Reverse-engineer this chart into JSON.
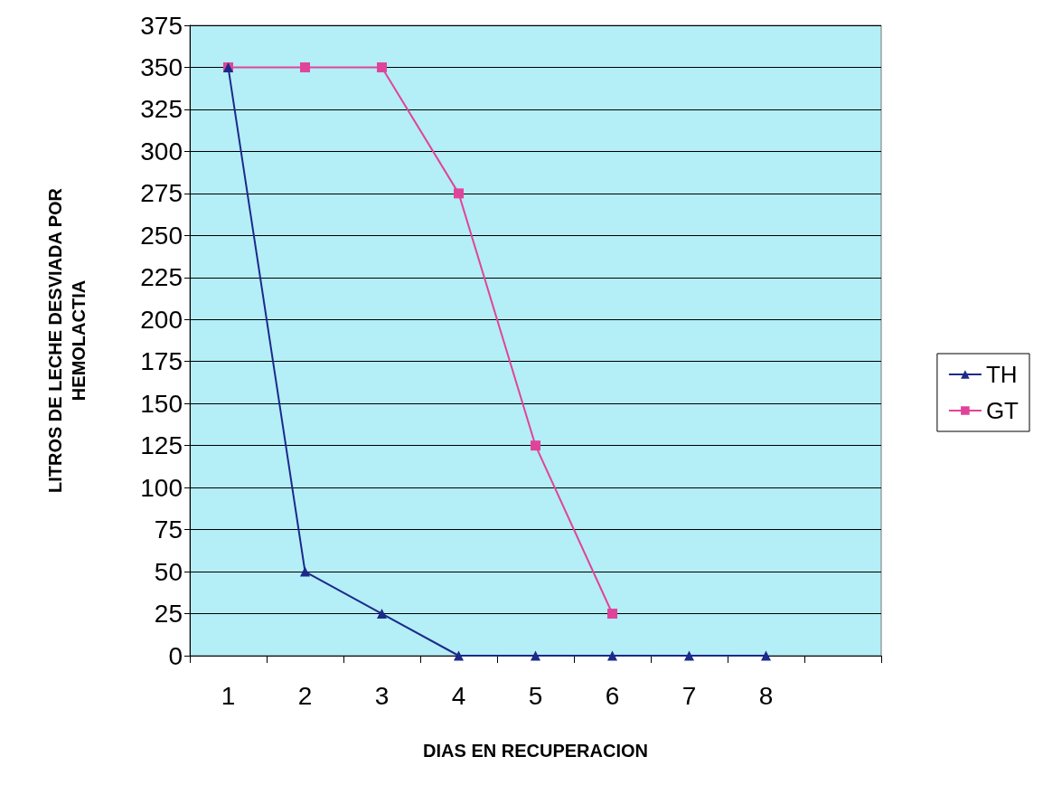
{
  "chart_data": {
    "type": "line",
    "xlabel": "DIAS EN RECUPERACION",
    "ylabel": "LITROS DE LECHE DESVIADA POR\nHEMOLACTIA",
    "categories": [
      "1",
      "2",
      "3",
      "4",
      "5",
      "6",
      "7",
      "8",
      null
    ],
    "series": [
      {
        "name": "TH",
        "color": "#1c2a8a",
        "marker": "triangle",
        "values": [
          350,
          50,
          25,
          0,
          0,
          0,
          0,
          0,
          null
        ]
      },
      {
        "name": "GT",
        "color": "#e0449a",
        "marker": "square",
        "values": [
          350,
          350,
          350,
          275,
          125,
          25,
          null,
          null,
          null
        ]
      }
    ],
    "ylim": [
      0,
      375
    ],
    "yticks": [
      0,
      25,
      50,
      75,
      100,
      125,
      150,
      175,
      200,
      225,
      250,
      275,
      300,
      325,
      350,
      375
    ],
    "grid": "y",
    "legend": "right",
    "line_style": "solid"
  }
}
